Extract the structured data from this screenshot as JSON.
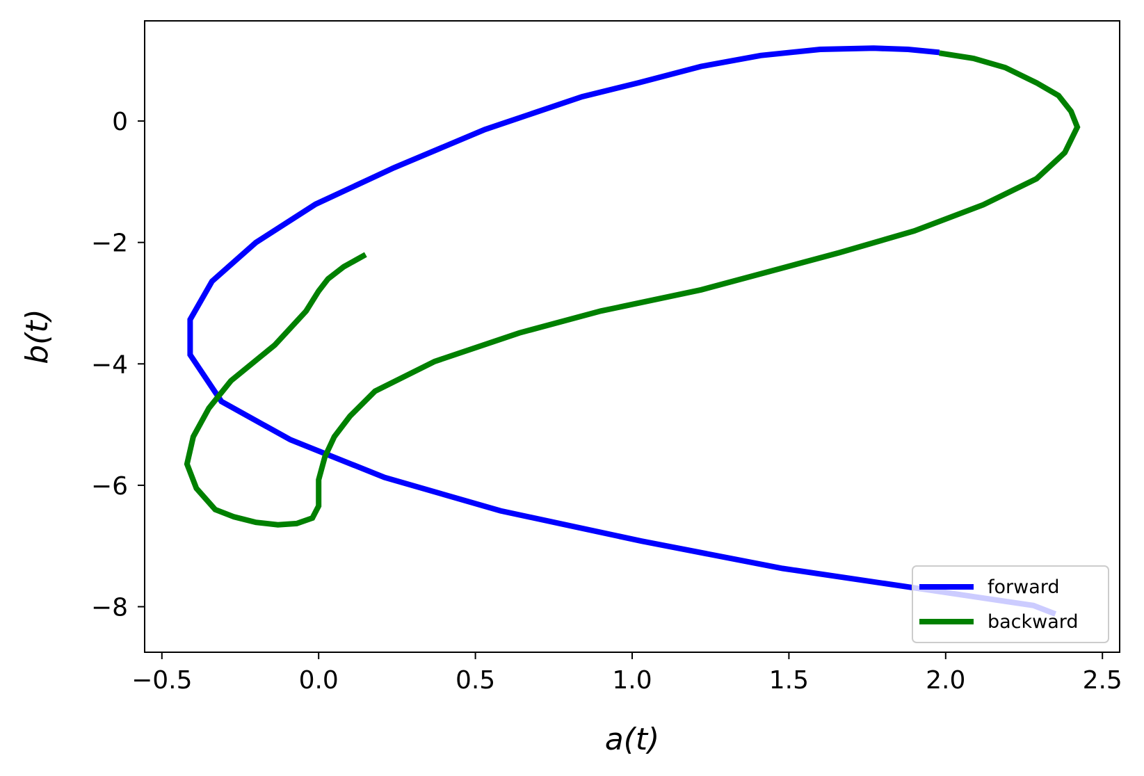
{
  "chart_data": {
    "type": "line",
    "title": "",
    "xlabel": "a(t)",
    "ylabel": "b(t)",
    "xlim": [
      -0.555,
      2.555
    ],
    "ylim": [
      -8.75,
      1.65
    ],
    "xticks": [
      -0.5,
      0.0,
      0.5,
      1.0,
      1.5,
      2.0,
      2.5
    ],
    "xtick_labels": [
      "−0.5",
      "0.0",
      "0.5",
      "1.0",
      "1.5",
      "2.0",
      "2.5"
    ],
    "yticks": [
      -8,
      -6,
      -4,
      -2,
      0
    ],
    "ytick_labels": [
      "−8",
      "−6",
      "−4",
      "−2",
      "0"
    ],
    "grid": false,
    "legend_position": "lower-right",
    "series": [
      {
        "name": "forward",
        "color": "#0000ff",
        "x": [
          2.35,
          2.28,
          1.94,
          1.48,
          1.03,
          0.58,
          0.21,
          -0.09,
          -0.31,
          -0.41,
          -0.41,
          -0.34,
          -0.2,
          -0.01,
          0.24,
          0.53,
          0.84,
          1.02,
          1.22,
          1.41,
          1.6,
          1.77,
          1.88,
          1.98
        ],
        "y": [
          -8.12,
          -7.98,
          -7.72,
          -7.37,
          -6.92,
          -6.42,
          -5.87,
          -5.25,
          -4.62,
          -3.85,
          -3.27,
          -2.64,
          -2.0,
          -1.37,
          -0.77,
          -0.14,
          0.4,
          0.63,
          0.9,
          1.08,
          1.18,
          1.2,
          1.18,
          1.13
        ]
      },
      {
        "name": "backward",
        "color": "#008000",
        "x": [
          1.98,
          2.09,
          2.19,
          2.29,
          2.36,
          2.4,
          2.42,
          2.38,
          2.29,
          2.12,
          1.9,
          1.66,
          1.22,
          0.9,
          0.64,
          0.37,
          0.18,
          0.1,
          0.05,
          0.02,
          0.0,
          0.0,
          -0.02,
          -0.07,
          -0.13,
          -0.2,
          -0.27,
          -0.33,
          -0.39,
          -0.42,
          -0.4,
          -0.35,
          -0.28,
          -0.14,
          -0.04,
          0.0,
          0.03,
          0.08,
          0.15
        ],
        "y": [
          1.12,
          1.03,
          0.88,
          0.63,
          0.42,
          0.16,
          -0.1,
          -0.52,
          -0.95,
          -1.38,
          -1.81,
          -2.17,
          -2.78,
          -3.13,
          -3.49,
          -3.96,
          -4.45,
          -4.86,
          -5.2,
          -5.53,
          -5.91,
          -6.34,
          -6.54,
          -6.63,
          -6.65,
          -6.61,
          -6.52,
          -6.4,
          -6.05,
          -5.65,
          -5.2,
          -4.73,
          -4.28,
          -3.69,
          -3.13,
          -2.8,
          -2.6,
          -2.4,
          -2.2
        ]
      }
    ]
  }
}
